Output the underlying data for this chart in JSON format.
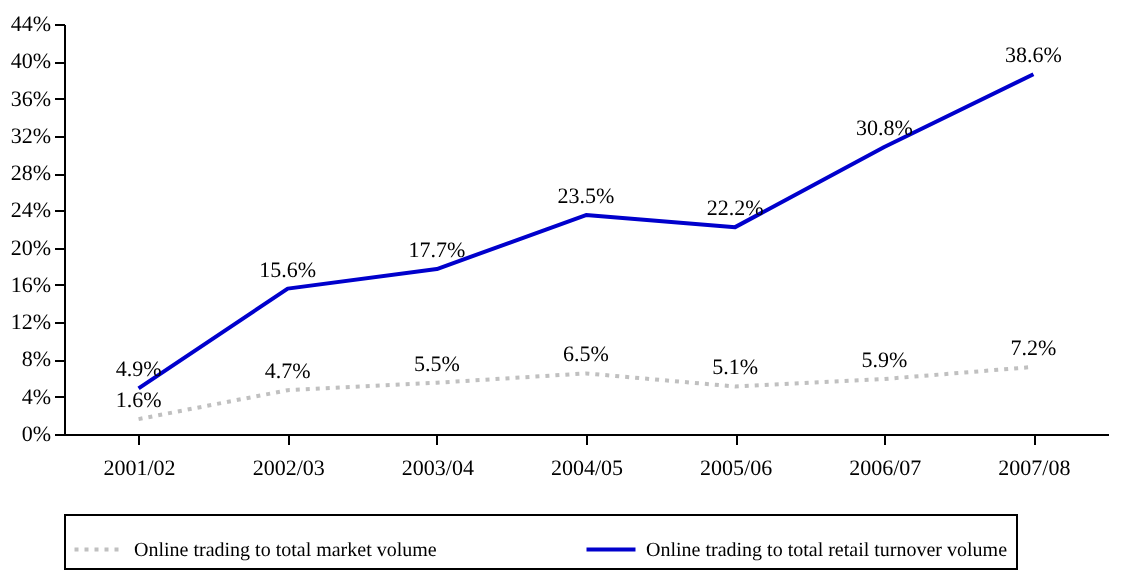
{
  "chart_data": {
    "type": "line",
    "categories": [
      "2001/02",
      "2002/03",
      "2003/04",
      "2004/05",
      "2005/06",
      "2006/07",
      "2007/08"
    ],
    "series": [
      {
        "name": "Online trading to total market volume",
        "color": "#c0c0c0",
        "line_style": "dotted",
        "values": [
          1.6,
          4.7,
          5.5,
          6.5,
          5.1,
          5.9,
          7.2
        ],
        "value_labels": [
          "1.6%",
          "4.7%",
          "5.5%",
          "6.5%",
          "5.1%",
          "5.9%",
          "7.2%"
        ]
      },
      {
        "name": "Online trading to total retail turnover volume",
        "color": "#0000cc",
        "line_style": "solid",
        "values": [
          4.9,
          15.6,
          17.7,
          23.5,
          22.2,
          30.8,
          38.6
        ],
        "value_labels": [
          "4.9%",
          "15.6%",
          "17.7%",
          "23.5%",
          "22.2%",
          "30.8%",
          "38.6%"
        ]
      }
    ],
    "ylim": [
      0,
      44
    ],
    "yticks": [
      {
        "value": 0,
        "label": "0%"
      },
      {
        "value": 4,
        "label": "4%"
      },
      {
        "value": 8,
        "label": "8%"
      },
      {
        "value": 12,
        "label": "12%"
      },
      {
        "value": 16,
        "label": "16%"
      },
      {
        "value": 20,
        "label": "20%"
      },
      {
        "value": 24,
        "label": "24%"
      },
      {
        "value": 28,
        "label": "28%"
      },
      {
        "value": 32,
        "label": "32%"
      },
      {
        "value": 36,
        "label": "36%"
      },
      {
        "value": 40,
        "label": "40%"
      },
      {
        "value": 44,
        "label": "44%"
      }
    ],
    "grid": false,
    "legend": "bottom",
    "marker": "none"
  }
}
